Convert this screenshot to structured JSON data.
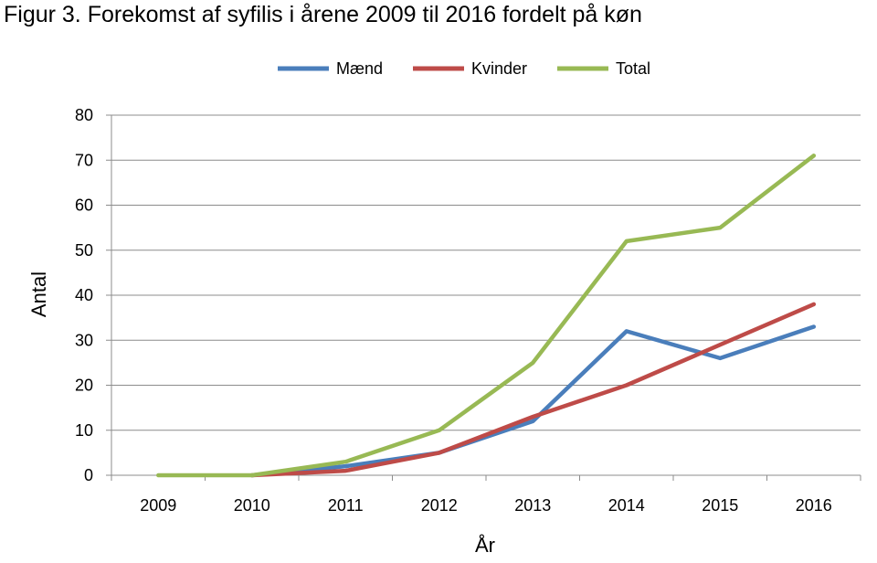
{
  "chart_data": {
    "type": "line",
    "title": "Figur 3. Forekomst af syfilis i årene 2009 til 2016 fordelt på køn",
    "xlabel": "År",
    "ylabel": "Antal",
    "categories": [
      "2009",
      "2010",
      "2011",
      "2012",
      "2013",
      "2014",
      "2015",
      "2016"
    ],
    "yticks": [
      "0",
      "10",
      "20",
      "30",
      "40",
      "50",
      "60",
      "70",
      "80"
    ],
    "ylim": [
      0,
      80
    ],
    "grid": true,
    "legend_position": "top",
    "series": [
      {
        "name": "Mænd",
        "color": "#4a7ebb",
        "values": [
          null,
          0,
          2,
          5,
          12,
          32,
          26,
          33
        ]
      },
      {
        "name": "Kvinder",
        "color": "#be4b48",
        "values": [
          null,
          0,
          1,
          5,
          13,
          20,
          29,
          38
        ]
      },
      {
        "name": "Total",
        "color": "#98b954",
        "values": [
          0,
          0,
          3,
          10,
          25,
          52,
          55,
          71
        ]
      }
    ]
  }
}
